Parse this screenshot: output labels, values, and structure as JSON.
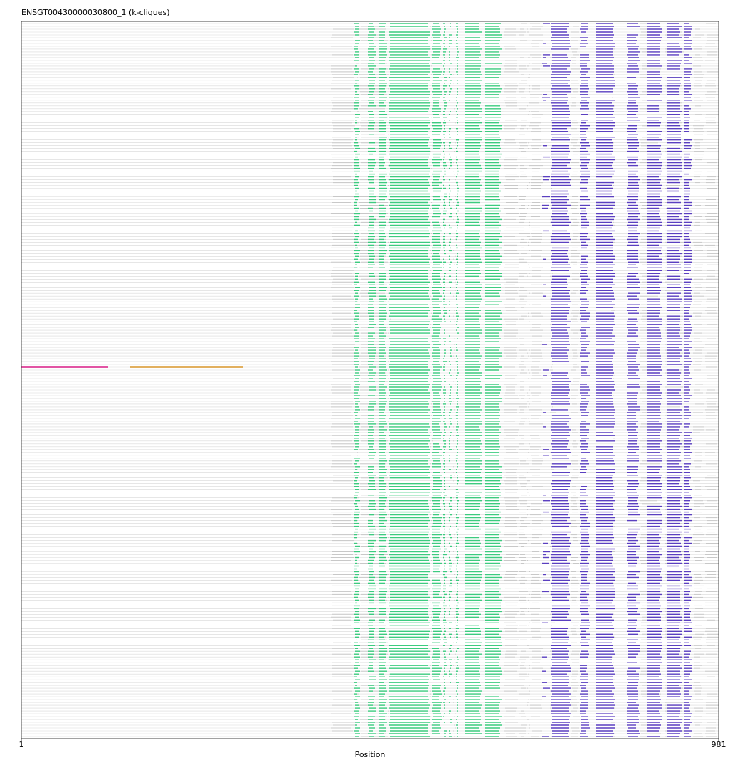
{
  "chart_data": {
    "type": "alignment",
    "title": "ENSGT00430000030800_1 (k-cliques)",
    "xlabel": "Position",
    "x_range": [
      1,
      981
    ],
    "x_ticks": [
      "1",
      "981"
    ],
    "row_count": 252,
    "colors": {
      "background_seq": "#d8d8d8",
      "clique_green": "#3ccb7f",
      "clique_purple": "#5a3fc0",
      "clique_magenta": "#d81b86",
      "clique_orange": "#d9962a",
      "frame": "#444444"
    },
    "segments_grey": [
      [
        436,
        470
      ],
      [
        470,
        476
      ],
      [
        476,
        516
      ],
      [
        516,
        516
      ],
      [
        576,
        576
      ],
      [
        608,
        608
      ],
      [
        679,
        700
      ],
      [
        700,
        712
      ],
      [
        712,
        716
      ],
      [
        716,
        734
      ],
      [
        744,
        752
      ],
      [
        773,
        786
      ],
      [
        830,
        836
      ],
      [
        870,
        900
      ],
      [
        905,
        932
      ],
      [
        945,
        960
      ],
      [
        962,
        981
      ]
    ],
    "segments_green": [
      [
        469,
        477
      ],
      [
        488,
        499
      ],
      [
        503,
        515
      ],
      [
        518,
        576
      ],
      [
        578,
        592
      ],
      [
        594,
        599
      ],
      [
        602,
        606
      ],
      [
        612,
        616
      ],
      [
        624,
        648
      ],
      [
        652,
        676
      ]
    ],
    "segments_purple": [
      [
        733,
        744
      ],
      [
        746,
        773
      ],
      [
        786,
        800
      ],
      [
        808,
        836
      ],
      [
        852,
        870
      ],
      [
        880,
        902
      ],
      [
        908,
        930
      ],
      [
        932,
        944
      ]
    ],
    "special_row": {
      "index": 121,
      "magenta": [
        1,
        123
      ],
      "orange": [
        154,
        312
      ]
    }
  }
}
